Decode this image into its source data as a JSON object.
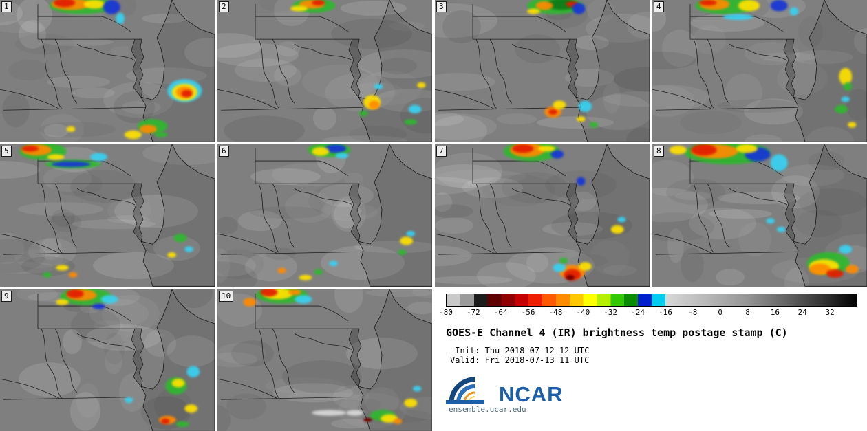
{
  "info": {
    "title": "GOES-E Channel 4 (IR) brightness temp postage stamp (C)",
    "init_line": " Init: Thu 2018-07-12 12 UTC",
    "valid_line": "Valid: Fri 2018-07-13 11 UTC",
    "logo_text": "NCAR",
    "logo_url": "ensemble.ucar.edu",
    "logo_color": "#1b5faa"
  },
  "colorbar": {
    "min": -80,
    "max": 40,
    "ticks": [
      "-80",
      "-72",
      "-64",
      "-56",
      "-48",
      "-40",
      "-32",
      "-24",
      "-16",
      "-8",
      "0",
      "8",
      "16",
      "24",
      "32"
    ],
    "cold_segments": [
      {
        "from": -80,
        "to": -76,
        "color": "#c9c9c9"
      },
      {
        "from": -76,
        "to": -72,
        "color": "#9a9a9a"
      },
      {
        "from": -72,
        "to": -68,
        "color": "#1c1c1c"
      },
      {
        "from": -68,
        "to": -64,
        "color": "#5e0000"
      },
      {
        "from": -64,
        "to": -60,
        "color": "#8f0000"
      },
      {
        "from": -60,
        "to": -56,
        "color": "#c40000"
      },
      {
        "from": -56,
        "to": -52,
        "color": "#f01e00"
      },
      {
        "from": -52,
        "to": -48,
        "color": "#ff5a00"
      },
      {
        "from": -48,
        "to": -44,
        "color": "#ff8c00"
      },
      {
        "from": -44,
        "to": -40,
        "color": "#ffc800"
      },
      {
        "from": -40,
        "to": -36,
        "color": "#ffff00"
      },
      {
        "from": -36,
        "to": -32,
        "color": "#b4f000"
      },
      {
        "from": -32,
        "to": -28,
        "color": "#32c800"
      },
      {
        "from": -28,
        "to": -24,
        "color": "#0a8c00"
      },
      {
        "from": -24,
        "to": -20,
        "color": "#0020cd"
      },
      {
        "from": -20,
        "to": -16,
        "color": "#00cdf0"
      }
    ],
    "warm_stops": [
      {
        "at": -16,
        "color": "#d8d8d8"
      },
      {
        "at": -4,
        "color": "#b8b8b8"
      },
      {
        "at": 8,
        "color": "#959595"
      },
      {
        "at": 20,
        "color": "#616161"
      },
      {
        "at": 32,
        "color": "#2a2a2a"
      },
      {
        "at": 40,
        "color": "#000000"
      }
    ]
  },
  "palette": {
    "g": "#2eb82e",
    "dg": "#0e7a12",
    "y": "#ffe100",
    "o": "#ff8a00",
    "r": "#e31a00",
    "dr": "#6e0000",
    "b": "#1535d6",
    "c": "#39d2f2",
    "w": "#d9d9d9"
  },
  "panels": [
    {
      "label": "1",
      "blobs": [
        [
          38,
          4,
          15,
          6,
          "g"
        ],
        [
          33,
          3,
          9,
          4,
          "o"
        ],
        [
          30,
          2,
          5,
          3,
          "r"
        ],
        [
          44,
          3,
          5,
          3,
          "y"
        ],
        [
          52,
          5,
          4,
          5,
          "b"
        ],
        [
          56,
          13,
          2,
          4,
          "c"
        ],
        [
          86,
          64,
          8,
          8,
          "c"
        ],
        [
          86,
          65,
          6,
          6,
          "y"
        ],
        [
          86,
          65,
          4,
          4,
          "o"
        ],
        [
          87,
          66,
          2.5,
          2.5,
          "r"
        ],
        [
          71,
          89,
          7,
          5,
          "g"
        ],
        [
          69,
          91,
          4,
          3,
          "o"
        ],
        [
          62,
          95,
          4,
          3,
          "y"
        ],
        [
          75,
          95,
          3,
          2,
          "g"
        ],
        [
          33,
          91,
          2,
          2,
          "y"
        ]
      ]
    },
    {
      "label": "2",
      "blobs": [
        [
          45,
          4,
          10,
          5,
          "g"
        ],
        [
          44,
          3,
          6,
          3,
          "o"
        ],
        [
          47,
          2,
          3,
          2,
          "r"
        ],
        [
          38,
          6,
          4,
          2,
          "y"
        ],
        [
          72,
          72,
          4,
          5,
          "y"
        ],
        [
          73,
          74,
          2.5,
          3,
          "o"
        ],
        [
          75,
          61,
          2,
          2,
          "c"
        ],
        [
          68,
          80,
          2,
          2,
          "g"
        ],
        [
          92,
          77,
          3,
          3,
          "c"
        ],
        [
          90,
          86,
          3,
          2,
          "g"
        ],
        [
          95,
          60,
          2,
          2,
          "y"
        ]
      ]
    },
    {
      "label": "3",
      "blobs": [
        [
          56,
          4,
          13,
          6,
          "g"
        ],
        [
          59,
          3,
          7,
          4,
          "dg"
        ],
        [
          51,
          4,
          4,
          3,
          "o"
        ],
        [
          64,
          3,
          3,
          2,
          "r"
        ],
        [
          67,
          6,
          3,
          4,
          "b"
        ],
        [
          46,
          8,
          3,
          2,
          "y"
        ],
        [
          55,
          79,
          4,
          4,
          "o"
        ],
        [
          55,
          79,
          2,
          2,
          "r"
        ],
        [
          58,
          74,
          3,
          3,
          "y"
        ],
        [
          70,
          75,
          3,
          4,
          "c"
        ],
        [
          68,
          84,
          2,
          2,
          "y"
        ],
        [
          74,
          88,
          2,
          2,
          "g"
        ]
      ]
    },
    {
      "label": "4",
      "blobs": [
        [
          34,
          4,
          14,
          6,
          "g"
        ],
        [
          29,
          3,
          7,
          4,
          "o"
        ],
        [
          26,
          2,
          4,
          2,
          "r"
        ],
        [
          45,
          4,
          5,
          4,
          "y"
        ],
        [
          59,
          4,
          4,
          4,
          "b"
        ],
        [
          40,
          12,
          7,
          2,
          "c"
        ],
        [
          66,
          8,
          2,
          3,
          "c"
        ],
        [
          90,
          54,
          3,
          6,
          "y"
        ],
        [
          91,
          61,
          2,
          3,
          "g"
        ],
        [
          88,
          77,
          3,
          3,
          "g"
        ],
        [
          90,
          70,
          2,
          2,
          "c"
        ],
        [
          93,
          88,
          2,
          2,
          "y"
        ]
      ]
    },
    {
      "label": "5",
      "blobs": [
        [
          20,
          5,
          11,
          6,
          "g"
        ],
        [
          17,
          4,
          7,
          4,
          "o"
        ],
        [
          14,
          3,
          4,
          2,
          "r"
        ],
        [
          34,
          14,
          13,
          3,
          "g"
        ],
        [
          33,
          14,
          9,
          2,
          "b"
        ],
        [
          46,
          9,
          4,
          3,
          "c"
        ],
        [
          26,
          9,
          4,
          2,
          "y"
        ],
        [
          29,
          87,
          3,
          2,
          "y"
        ],
        [
          34,
          92,
          2,
          2,
          "o"
        ],
        [
          22,
          92,
          2,
          2,
          "g"
        ],
        [
          84,
          66,
          3,
          3,
          "g"
        ],
        [
          88,
          74,
          2,
          2,
          "c"
        ],
        [
          80,
          78,
          2,
          2,
          "y"
        ]
      ]
    },
    {
      "label": "6",
      "blobs": [
        [
          52,
          4,
          10,
          5,
          "g"
        ],
        [
          55,
          3,
          5,
          3,
          "b"
        ],
        [
          48,
          5,
          4,
          3,
          "y"
        ],
        [
          58,
          8,
          3,
          2,
          "c"
        ],
        [
          30,
          89,
          2,
          2,
          "o"
        ],
        [
          41,
          94,
          3,
          2,
          "y"
        ],
        [
          54,
          84,
          2,
          2,
          "c"
        ],
        [
          47,
          90,
          2,
          2,
          "g"
        ],
        [
          88,
          68,
          3,
          3,
          "y"
        ],
        [
          90,
          63,
          2,
          2,
          "c"
        ],
        [
          86,
          76,
          2,
          2,
          "g"
        ]
      ]
    },
    {
      "label": "7",
      "blobs": [
        [
          45,
          5,
          13,
          7,
          "g"
        ],
        [
          43,
          4,
          8,
          5,
          "o"
        ],
        [
          41,
          3,
          5,
          3,
          "r"
        ],
        [
          57,
          7,
          3,
          3,
          "b"
        ],
        [
          68,
          26,
          2,
          3,
          "b"
        ],
        [
          52,
          3,
          4,
          2,
          "y"
        ],
        [
          64,
          90,
          6,
          5,
          "o"
        ],
        [
          64,
          92,
          4,
          4,
          "r"
        ],
        [
          63,
          94,
          2,
          2,
          "dr"
        ],
        [
          58,
          87,
          3,
          3,
          "c"
        ],
        [
          70,
          86,
          3,
          3,
          "y"
        ],
        [
          60,
          82,
          2,
          2,
          "g"
        ],
        [
          85,
          60,
          3,
          3,
          "y"
        ],
        [
          87,
          53,
          2,
          2,
          "c"
        ]
      ]
    },
    {
      "label": "8",
      "blobs": [
        [
          35,
          6,
          20,
          8,
          "g"
        ],
        [
          29,
          5,
          11,
          5,
          "o"
        ],
        [
          24,
          4,
          6,
          4,
          "r"
        ],
        [
          49,
          7,
          6,
          5,
          "b"
        ],
        [
          59,
          13,
          4,
          6,
          "c"
        ],
        [
          44,
          3,
          5,
          3,
          "y"
        ],
        [
          12,
          4,
          4,
          3,
          "y"
        ],
        [
          82,
          84,
          10,
          8,
          "g"
        ],
        [
          80,
          86,
          7,
          5,
          "y"
        ],
        [
          78,
          88,
          5,
          4,
          "o"
        ],
        [
          85,
          91,
          4,
          3,
          "r"
        ],
        [
          90,
          74,
          3,
          3,
          "c"
        ],
        [
          93,
          88,
          3,
          3,
          "o"
        ],
        [
          55,
          54,
          2,
          2,
          "c"
        ],
        [
          60,
          60,
          2,
          2,
          "c"
        ]
      ]
    },
    {
      "label": "9",
      "blobs": [
        [
          40,
          5,
          12,
          6,
          "g"
        ],
        [
          38,
          4,
          7,
          4,
          "o"
        ],
        [
          35,
          3,
          4,
          3,
          "r"
        ],
        [
          51,
          7,
          4,
          3,
          "c"
        ],
        [
          29,
          9,
          3,
          2,
          "y"
        ],
        [
          46,
          12,
          3,
          2,
          "b"
        ],
        [
          82,
          68,
          5,
          6,
          "g"
        ],
        [
          83,
          66,
          3,
          3,
          "y"
        ],
        [
          90,
          58,
          3,
          4,
          "c"
        ],
        [
          78,
          92,
          4,
          3,
          "o"
        ],
        [
          77,
          93,
          2,
          2,
          "r"
        ],
        [
          89,
          84,
          3,
          3,
          "y"
        ],
        [
          85,
          95,
          3,
          2,
          "g"
        ],
        [
          60,
          78,
          2,
          2,
          "c"
        ]
      ]
    },
    {
      "label": "10",
      "blobs": [
        [
          30,
          4,
          12,
          6,
          "g"
        ],
        [
          28,
          3,
          7,
          4,
          "y"
        ],
        [
          24,
          2,
          4,
          3,
          "r"
        ],
        [
          40,
          7,
          4,
          3,
          "c"
        ],
        [
          15,
          9,
          3,
          3,
          "o"
        ],
        [
          36,
          2,
          3,
          2,
          "o"
        ],
        [
          77,
          89,
          6,
          4,
          "g"
        ],
        [
          80,
          91,
          4,
          3,
          "y"
        ],
        [
          84,
          93,
          2,
          2,
          "o"
        ],
        [
          70,
          92,
          2,
          1.5,
          "dr"
        ],
        [
          64,
          87,
          4,
          2,
          "w"
        ],
        [
          52,
          87,
          8,
          2,
          "w"
        ],
        [
          90,
          80,
          3,
          3,
          "y"
        ],
        [
          93,
          70,
          2,
          2,
          "c"
        ]
      ]
    }
  ]
}
